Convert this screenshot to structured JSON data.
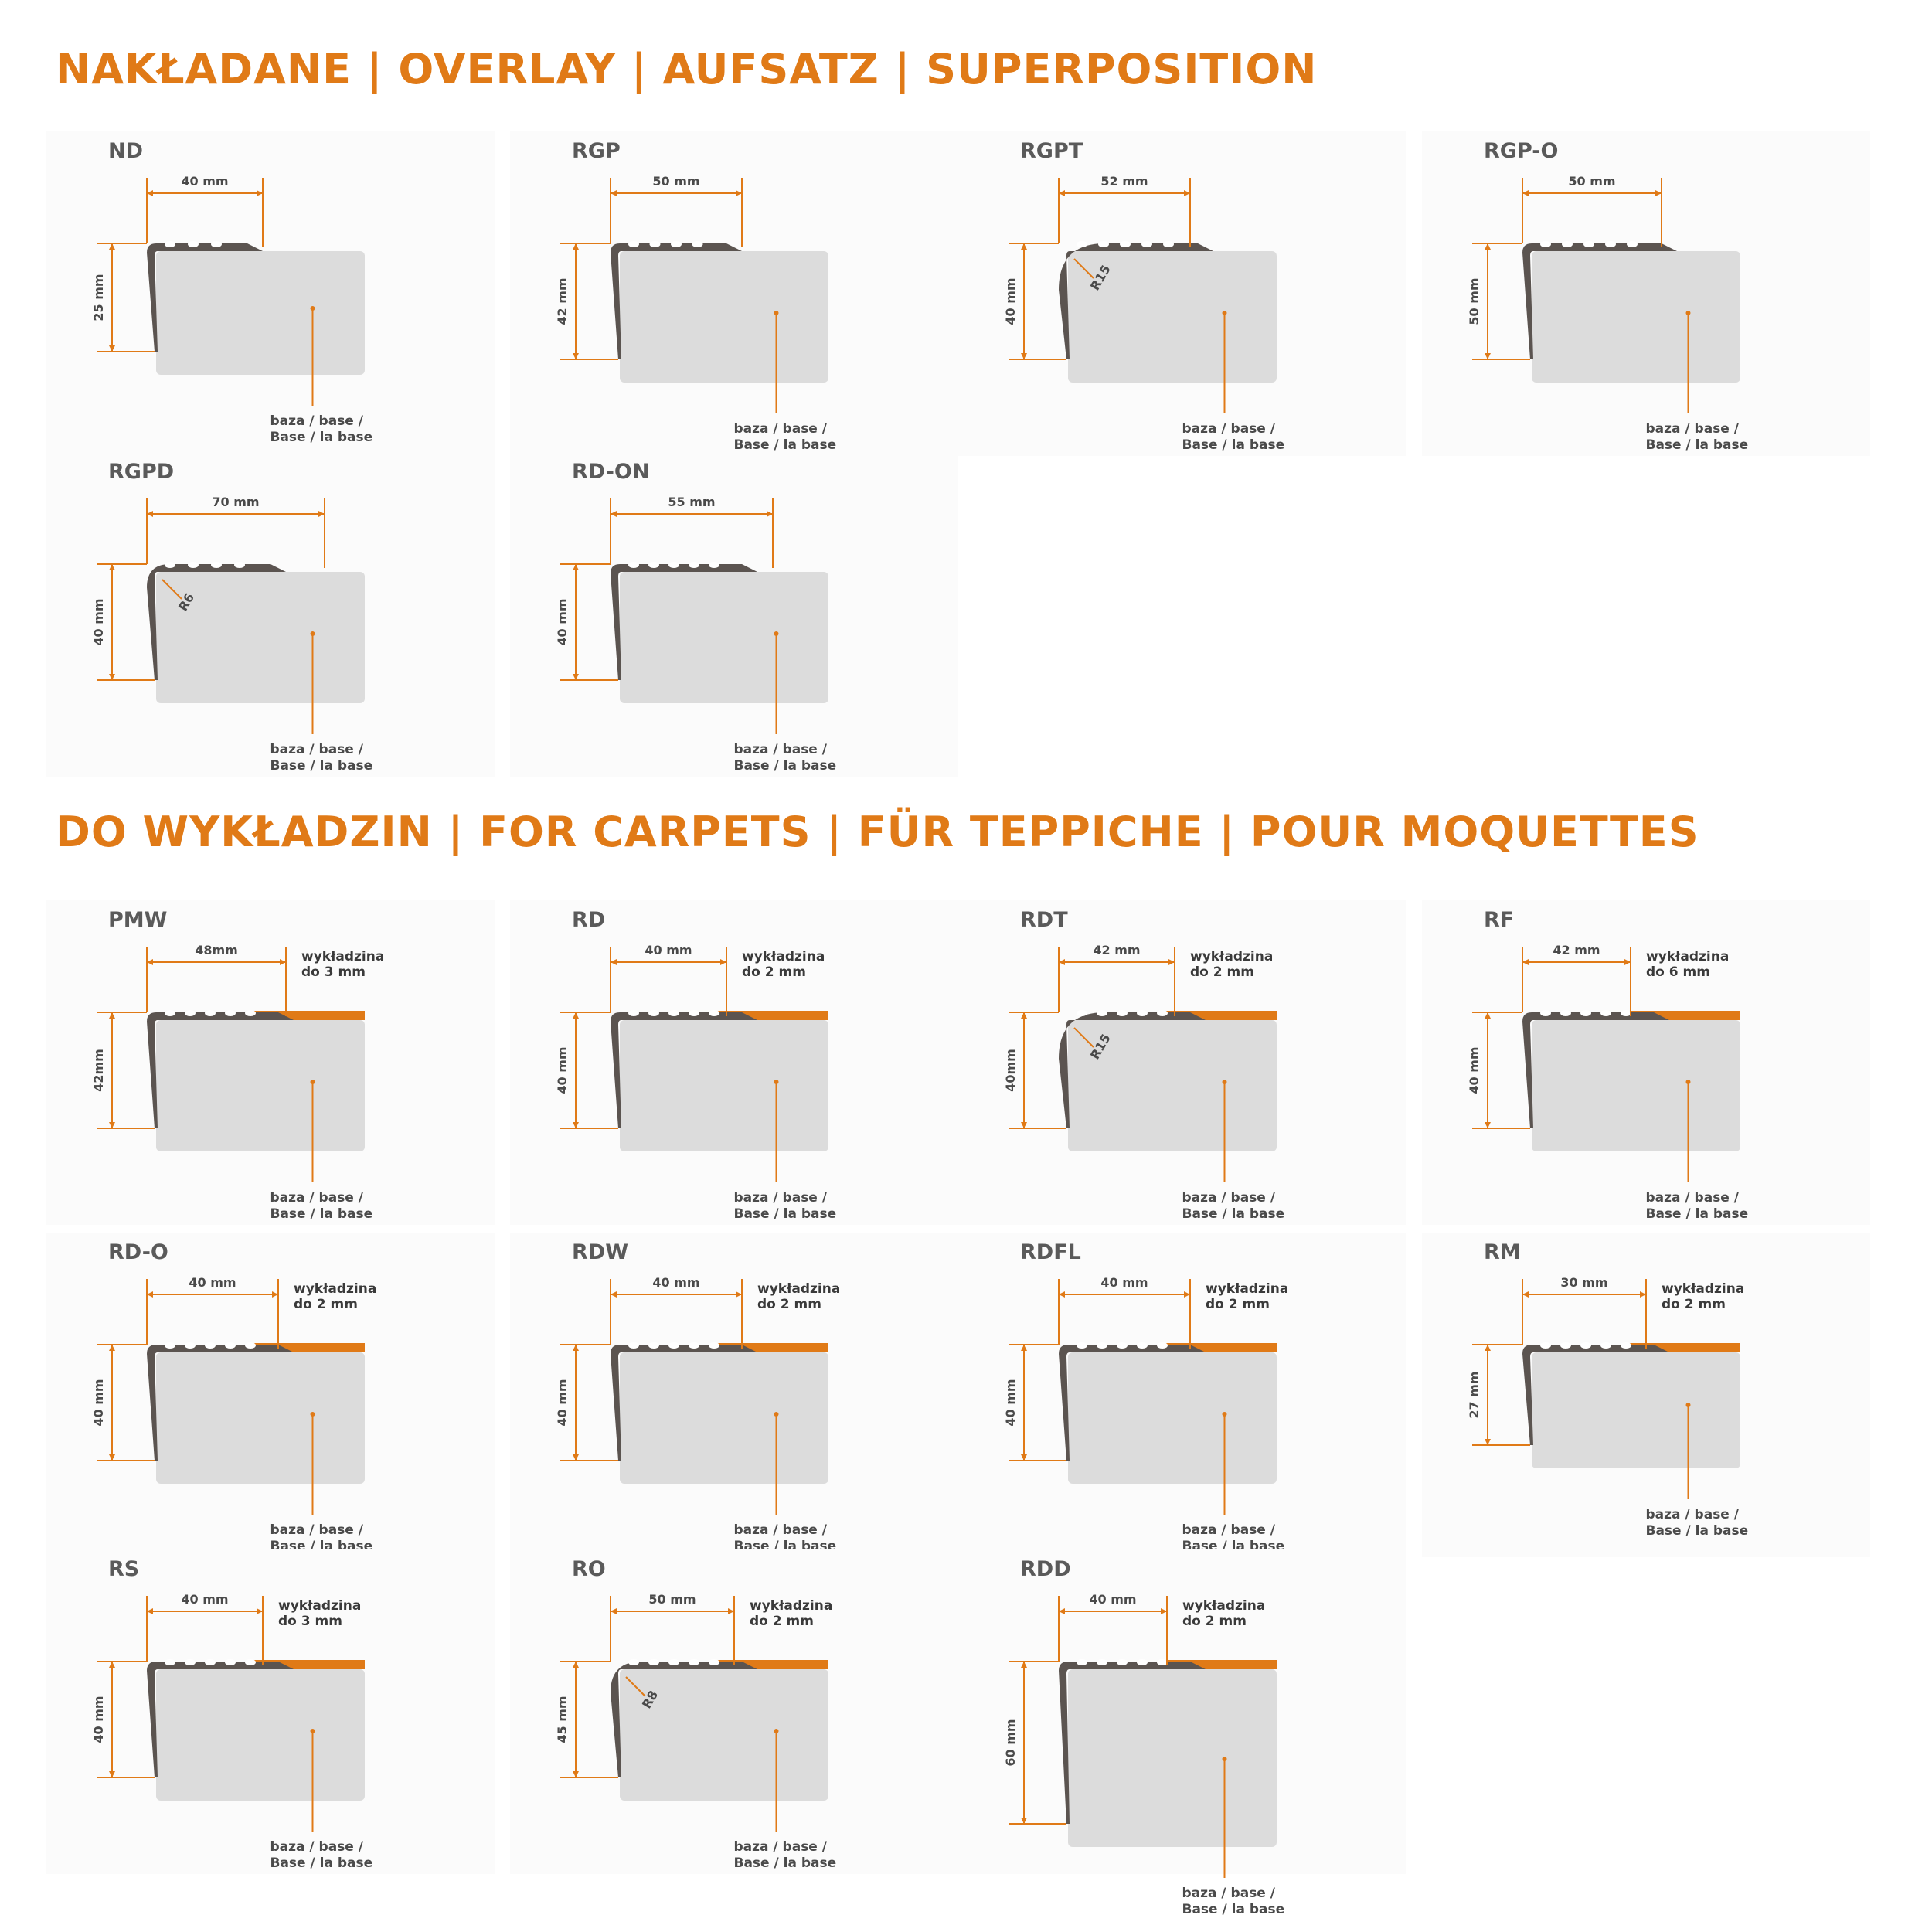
{
  "colors": {
    "accent": "#e07a17",
    "profile": "#5b5450",
    "base": "#dcdcdc",
    "text": "#4a4a4a"
  },
  "sections": {
    "overlay": "NAKŁADANE | OVERLAY | AUFSATZ | SUPERPOSITION",
    "carpets": "DO WYKŁADZIN | FOR CARPETS | FÜR TEPPICHE | POUR MOQUETTES"
  },
  "base_label": {
    "line1": "baza / base /",
    "line2": "Base / la base"
  },
  "profiles": [
    {
      "code": "ND",
      "width": "40 mm",
      "height": "25 mm",
      "radius": "",
      "carpet1": "",
      "carpet2": "",
      "group": "overlay"
    },
    {
      "code": "RGP",
      "width": "50 mm",
      "height": "42 mm",
      "radius": "",
      "carpet1": "",
      "carpet2": "",
      "group": "overlay"
    },
    {
      "code": "RGPT",
      "width": "52 mm",
      "height": "40 mm",
      "radius": "R15",
      "carpet1": "",
      "carpet2": "",
      "group": "overlay"
    },
    {
      "code": "RGP-O",
      "width": "50 mm",
      "height": "50 mm",
      "radius": "",
      "carpet1": "",
      "carpet2": "",
      "group": "overlay"
    },
    {
      "code": "RGPD",
      "width": "70 mm",
      "height": "40 mm",
      "radius": "R6",
      "carpet1": "",
      "carpet2": "",
      "group": "overlay"
    },
    {
      "code": "RD-ON",
      "width": "55 mm",
      "height": "40 mm",
      "radius": "",
      "carpet1": "",
      "carpet2": "",
      "group": "overlay"
    },
    {
      "code": "PMW",
      "width": "48mm",
      "height": "42mm",
      "radius": "",
      "carpet1": "wykładzina",
      "carpet2": "do 3 mm",
      "group": "carpets"
    },
    {
      "code": "RD",
      "width": "40 mm",
      "height": "40 mm",
      "radius": "",
      "carpet1": "wykładzina",
      "carpet2": "do 2 mm",
      "group": "carpets"
    },
    {
      "code": "RDT",
      "width": "42 mm",
      "height": "40mm",
      "radius": "R15",
      "carpet1": "wykładzina",
      "carpet2": "do 2 mm",
      "group": "carpets"
    },
    {
      "code": "RF",
      "width": "42 mm",
      "height": "40 mm",
      "radius": "",
      "carpet1": "wykładzina",
      "carpet2": "do 6 mm",
      "group": "carpets"
    },
    {
      "code": "RD-O",
      "width": "40 mm",
      "height": "40 mm",
      "radius": "",
      "carpet1": "wykładzina",
      "carpet2": "do 2 mm",
      "group": "carpets"
    },
    {
      "code": "RDW",
      "width": "40 mm",
      "height": "40 mm",
      "radius": "",
      "carpet1": "wykładzina",
      "carpet2": "do 2 mm",
      "group": "carpets"
    },
    {
      "code": "RDFL",
      "width": "40 mm",
      "height": "40 mm",
      "radius": "",
      "carpet1": "wykładzina",
      "carpet2": "do 2 mm",
      "group": "carpets"
    },
    {
      "code": "RM",
      "width": "30 mm",
      "height": "27 mm",
      "radius": "",
      "carpet1": "wykładzina",
      "carpet2": "do 2 mm",
      "group": "carpets"
    },
    {
      "code": "RS",
      "width": "40 mm",
      "height": "40 mm",
      "radius": "",
      "carpet1": "wykładzina",
      "carpet2": "do 3 mm",
      "group": "carpets"
    },
    {
      "code": "RO",
      "width": "50 mm",
      "height": "45 mm",
      "radius": "R8",
      "carpet1": "wykładzina",
      "carpet2": "do 2 mm",
      "group": "carpets"
    },
    {
      "code": "RDD",
      "width": "40 mm",
      "height": "60 mm",
      "radius": "",
      "carpet1": "wykładzina",
      "carpet2": "do 2 mm",
      "group": "carpets"
    }
  ]
}
